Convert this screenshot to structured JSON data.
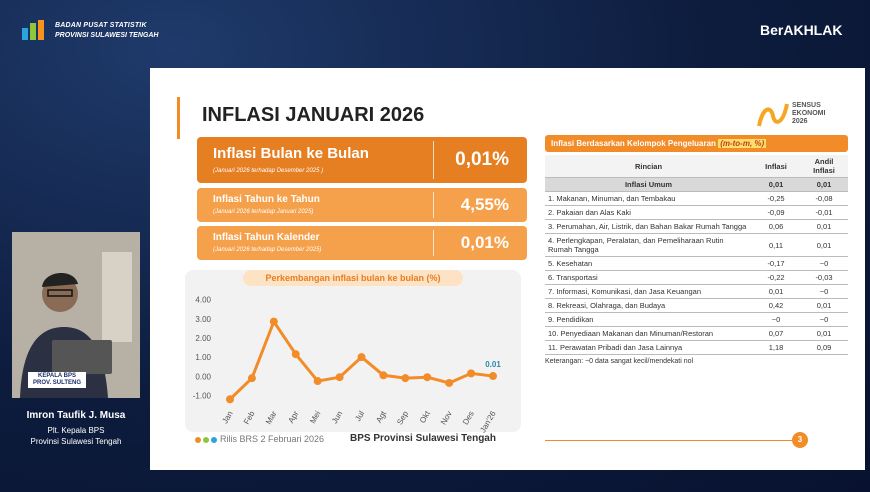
{
  "header": {
    "org": "BADAN PUSAT STATISTIK",
    "region": "PROVINSI SULAWESI TENGAH",
    "brand": "BerAKHLAK"
  },
  "slide": {
    "title": "INFLASI JANUARI 2026",
    "logo": "SENSUS EKONOMI 2026",
    "boxes": [
      {
        "label": "Inflasi Bulan ke Bulan",
        "note": "(Januari 2026 terhadap Desember 2025 )",
        "value": "0,01%"
      },
      {
        "label": "Inflasi Tahun ke Tahun",
        "note": "(Januari 2026 terhadap Januari 2025)",
        "value": "4,55%"
      },
      {
        "label": "Inflasi Tahun Kalender",
        "note": "(Januari 2026 terhadap Desember 2025)",
        "value": "0,01%"
      }
    ],
    "footer": {
      "release": "Rilis BRS 2 Februari 2026",
      "source": "BPS Provinsi Sulawesi Tengah",
      "page": "3"
    }
  },
  "table": {
    "title": "Inflasi Berdasarkan Kelompok Pengeluaran",
    "unit": "(m-to-m, %)",
    "header": [
      "Rincian",
      "Inflasi",
      "Andil Inflasi"
    ],
    "rows": [
      [
        "Inflasi Umum",
        "0,01",
        "0,01"
      ],
      [
        "1. Makanan, Minuman, dan Tembakau",
        "-0,25",
        "-0,08"
      ],
      [
        "2. Pakaian dan Alas Kaki",
        "-0,09",
        "-0,01"
      ],
      [
        "3. Perumahan, Air, Listrik, dan Bahan Bakar Rumah Tangga",
        "0,06",
        "0,01"
      ],
      [
        "4. Perlengkapan, Peralatan, dan Pemeliharaan Rutin Rumah Tangga",
        "0,11",
        "0,01"
      ],
      [
        "5. Kesehatan",
        "-0,17",
        "~0"
      ],
      [
        "6. Transportasi",
        "-0,22",
        "-0,03"
      ],
      [
        "7. Informasi, Komunikasi, dan Jasa Keuangan",
        "0,01",
        "~0"
      ],
      [
        "8. Rekreasi, Olahraga, dan Budaya",
        "0,42",
        "0,01"
      ],
      [
        "9. Pendidikan",
        "~0",
        "~0"
      ],
      [
        "10. Penyediaan Makanan dan Minuman/Restoran",
        "0,07",
        "0,01"
      ],
      [
        "11. Perawatan Pribadi dan Jasa Lainnya",
        "1,18",
        "0,09"
      ]
    ],
    "note": "Keterangan: ~0  data sangat kecil/mendekati nol"
  },
  "speaker": {
    "sign": "KEPALA BPS PROV. SULTENG",
    "name": "Imron Taufik J. Musa",
    "role": "Plt. Kepala BPS",
    "region": "Provinsi Sulawesi Tengah"
  },
  "chart_data": {
    "type": "line",
    "title": "Perkembangan inflasi bulan ke bulan (%)",
    "categories": [
      "Jan",
      "Feb",
      "Mar",
      "Apr",
      "Mei",
      "Jun",
      "Jul",
      "Agt",
      "Sep",
      "Okt",
      "Nov",
      "Des",
      "Jan'26"
    ],
    "values": [
      -1.2,
      -0.1,
      2.85,
      1.15,
      -0.25,
      -0.05,
      1.0,
      0.05,
      -0.1,
      -0.05,
      -0.35,
      0.15,
      0.01
    ],
    "color": "#f28c28",
    "ylim": [
      -1.5,
      4.5
    ],
    "yticks": [
      {
        "value": 4,
        "label": "4.00"
      },
      {
        "value": 3,
        "label": "3.00"
      },
      {
        "value": 2,
        "label": "2.00"
      },
      {
        "value": 1,
        "label": "1.00"
      },
      {
        "value": 0,
        "label": "0.00"
      },
      {
        "value": -1,
        "label": "-1.00"
      }
    ],
    "grid": false
  }
}
